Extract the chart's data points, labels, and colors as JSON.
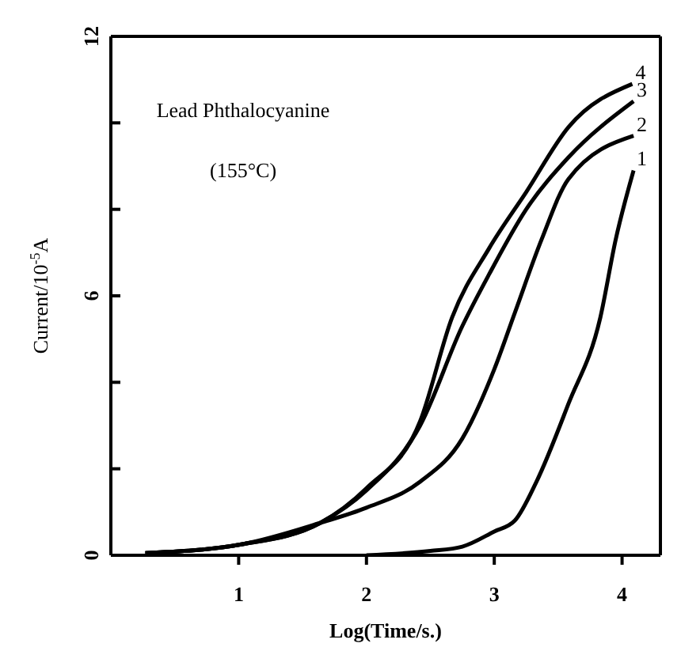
{
  "chart_data": {
    "type": "line",
    "xlabel": "Log(Time/s.)",
    "ylabel": "Current/10$^{-5}$A",
    "annotations": [
      "Lead Phthalocyanine",
      "(155°C)"
    ],
    "xlim": [
      0,
      4.3
    ],
    "xticks": [
      1,
      2,
      3,
      4
    ],
    "ylim": [
      0,
      12
    ],
    "yticks": [
      0,
      {
        "value": 2,
        "label": null
      },
      {
        "value": 4,
        "label": null
      },
      6,
      {
        "value": 8,
        "label": null
      },
      {
        "value": 10,
        "label": null
      },
      12
    ],
    "marker": "none",
    "line_style": "solid",
    "series": [
      {
        "name": "1",
        "color": "#000000",
        "x": [
          2.0,
          2.5,
          2.75,
          3.0,
          3.16,
          3.33,
          3.58,
          3.83,
          3.95,
          4.09
        ],
        "values": [
          0.0,
          0.1,
          0.2,
          0.55,
          0.8,
          1.7,
          3.5,
          5.5,
          7.3,
          8.9
        ]
      },
      {
        "name": "2",
        "color": "#000000",
        "x": [
          0.27,
          1.02,
          1.64,
          2.0,
          2.42,
          2.75,
          3.0,
          3.16,
          3.37,
          3.58,
          4.09
        ],
        "values": [
          0.05,
          0.25,
          0.75,
          1.1,
          1.7,
          2.7,
          4.3,
          5.6,
          7.3,
          8.7,
          9.7
        ]
      },
      {
        "name": "3",
        "color": "#000000",
        "x": [
          0.27,
          1.02,
          1.64,
          2.0,
          2.42,
          2.75,
          2.96,
          3.25,
          3.58,
          4.09
        ],
        "values": [
          0.05,
          0.25,
          0.75,
          1.5,
          3.0,
          5.3,
          6.5,
          8.0,
          9.2,
          10.5
        ]
      },
      {
        "name": "4",
        "color": "#000000",
        "x": [
          0.27,
          1.02,
          1.64,
          2.0,
          2.42,
          2.67,
          2.96,
          3.25,
          3.58,
          4.08
        ],
        "values": [
          0.05,
          0.25,
          0.75,
          1.55,
          3.1,
          5.5,
          7.1,
          8.4,
          9.9,
          10.9
        ]
      }
    ]
  }
}
